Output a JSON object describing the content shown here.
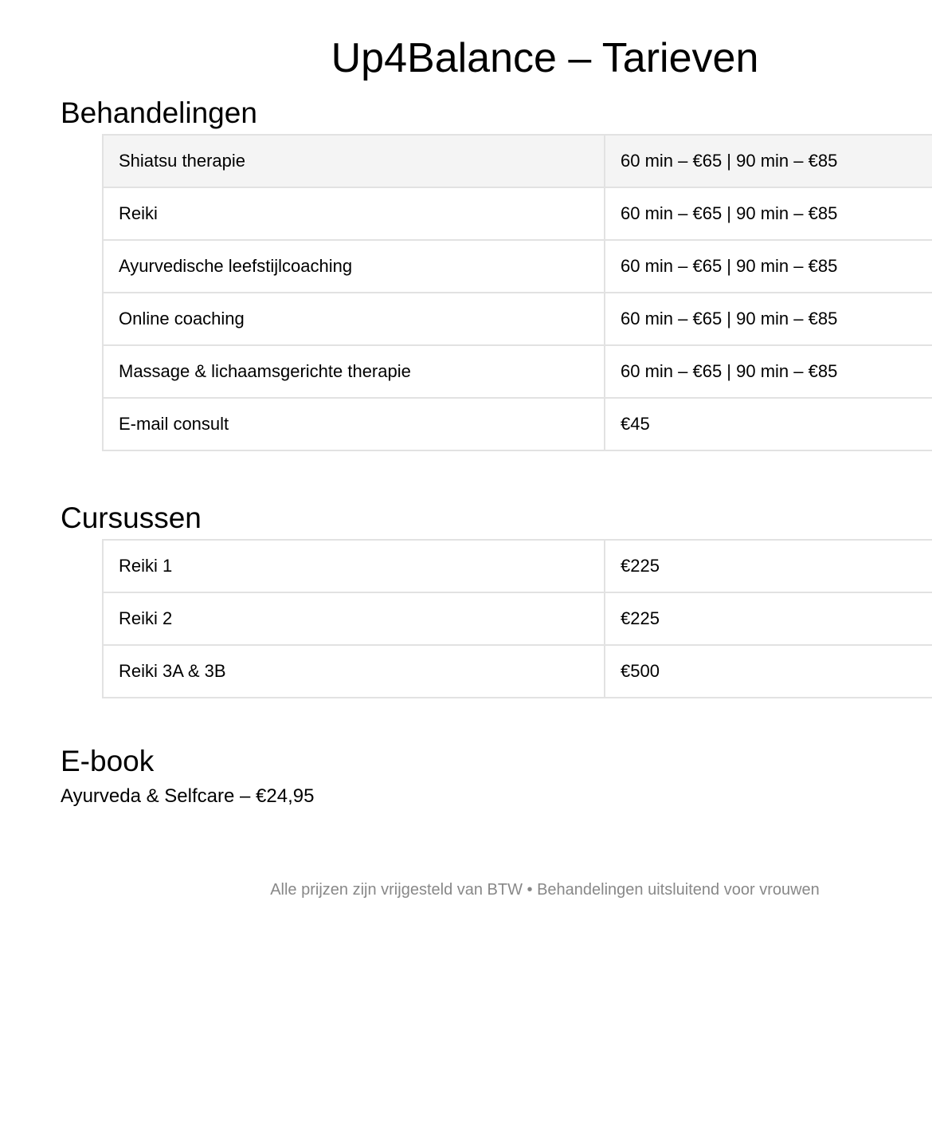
{
  "title": "Up4Balance – Tarieven",
  "sections": {
    "behandelingen": {
      "heading": "Behandelingen",
      "rows": [
        {
          "name": "Shiatsu therapie",
          "price": "60 min – €65 | 90 min – €85"
        },
        {
          "name": "Reiki",
          "price": "60 min – €65 | 90 min – €85"
        },
        {
          "name": "Ayurvedische leefstijlcoaching",
          "price": "60 min – €65 | 90 min – €85"
        },
        {
          "name": "Online coaching",
          "price": "60 min – €65 | 90 min – €85"
        },
        {
          "name": "Massage & lichaamsgerichte therapie",
          "price": "60 min – €65 | 90 min – €85"
        },
        {
          "name": "E-mail consult",
          "price": "€45"
        }
      ]
    },
    "cursussen": {
      "heading": "Cursussen",
      "rows": [
        {
          "name": "Reiki 1",
          "price": "€225"
        },
        {
          "name": "Reiki 2",
          "price": "€225"
        },
        {
          "name": "Reiki 3A & 3B",
          "price": "€500"
        }
      ]
    },
    "ebook": {
      "heading": "E-book",
      "text": "Ayurveda & Selfcare – €24,95"
    }
  },
  "footer": "Alle prijzen zijn vrijgesteld van BTW • Behandelingen uitsluitend voor vrouwen"
}
